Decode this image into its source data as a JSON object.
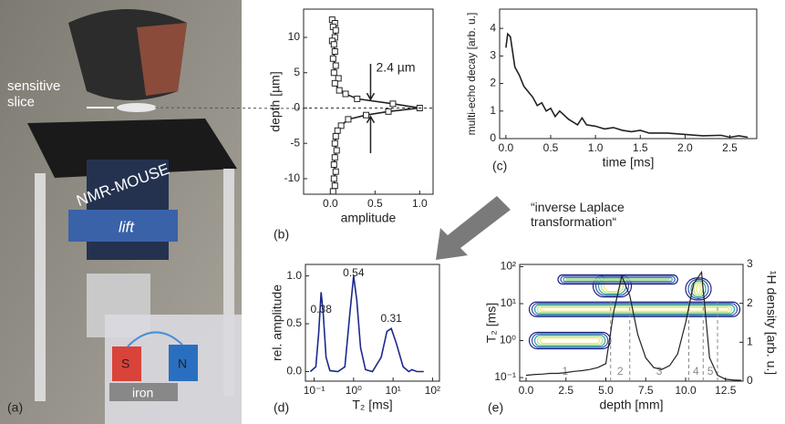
{
  "photo": {
    "panel": "(a)",
    "slice_label": "sensitive\nslice",
    "device": "NMR-MOUSE",
    "lift": "lift",
    "magnet_s": "S",
    "magnet_n": "N",
    "iron": "iron"
  },
  "arrow_label": "“inverse Laplace\ntransformation“",
  "chart_data": [
    {
      "type": "line",
      "panel": "(b)",
      "x_label": "amplitude",
      "y_label": "depth [µm]",
      "annotation": "2.4 µm",
      "xlim": [
        -0.3,
        1.15
      ],
      "xticks": [
        {
          "value": 0,
          "label": "0.0"
        },
        0.5,
        {
          "value": 1,
          "label": "1.0"
        }
      ],
      "ylim": [
        -12.2,
        14
      ],
      "yticks": [
        -10,
        -5,
        0,
        5,
        10
      ],
      "series": [
        {
          "color": "#222222",
          "markers": true,
          "x": [
            0.02,
            0.05,
            0.03,
            0.06,
            0.05,
            0.02,
            0.04,
            0.05,
            0.03,
            0.06,
            0.04,
            0.09,
            0.05,
            0.1,
            0.17,
            0.3,
            0.7,
            1.0,
            0.65,
            0.4,
            0.2,
            0.12,
            0.08,
            0.06,
            0.05,
            0.07,
            0.05,
            0.04,
            0.06,
            0.04,
            0.05,
            0.03
          ],
          "values": [
            12.5,
            12,
            11.5,
            11,
            10,
            9.5,
            9,
            8,
            7,
            6,
            5,
            4.2,
            3.5,
            2.5,
            2,
            1.3,
            0.6,
            0,
            -0.5,
            -1,
            -1.6,
            -2.5,
            -3.2,
            -4,
            -5,
            -6,
            -7,
            -8,
            -9,
            -10,
            -11,
            -11.8
          ]
        }
      ]
    },
    {
      "type": "line",
      "panel": "(c)",
      "x_label": "time [ms]",
      "y_label": "multi-echo decay [arb. u.]",
      "xlim": [
        -0.07,
        2.8
      ],
      "xticks": [
        {
          "value": 0,
          "label": "0.0"
        },
        0.5,
        {
          "value": 1,
          "label": "1.0"
        },
        1.5,
        {
          "value": 2,
          "label": "2.0"
        },
        2.5
      ],
      "ylim": [
        0,
        4.7
      ],
      "yticks": [
        0,
        1,
        2,
        3,
        4
      ],
      "series": [
        {
          "color": "#222222",
          "x": [
            0,
            0.02,
            0.05,
            0.1,
            0.15,
            0.2,
            0.25,
            0.3,
            0.35,
            0.4,
            0.45,
            0.5,
            0.55,
            0.6,
            0.7,
            0.8,
            0.85,
            0.9,
            1.0,
            1.1,
            1.2,
            1.3,
            1.4,
            1.5,
            1.6,
            1.8,
            2.0,
            2.2,
            2.4,
            2.5,
            2.6,
            2.7
          ],
          "values": [
            3.3,
            3.8,
            3.7,
            2.6,
            2.3,
            1.9,
            1.7,
            1.5,
            1.2,
            1.3,
            1.0,
            1.1,
            0.8,
            1.0,
            0.7,
            0.5,
            0.75,
            0.5,
            0.45,
            0.35,
            0.4,
            0.3,
            0.25,
            0.3,
            0.2,
            0.2,
            0.15,
            0.1,
            0.12,
            0.05,
            0.1,
            0.05
          ]
        }
      ]
    },
    {
      "type": "line",
      "panel": "(d)",
      "x_label": "T₂ [ms]",
      "y_label": "rel. amplitude",
      "x_log": true,
      "peak_labels": [
        "0.38",
        "0.54",
        "0.31"
      ],
      "xlim": [
        0.06,
        150
      ],
      "xticks": [
        {
          "value": 0.1,
          "label": "10⁻¹"
        },
        {
          "value": 1,
          "label": "10⁰"
        },
        {
          "value": 10,
          "label": "10¹"
        },
        {
          "value": 100,
          "label": "10²"
        }
      ],
      "ylim": [
        -0.1,
        1.12
      ],
      "yticks": [
        {
          "value": 0,
          "label": "0.0"
        },
        0.5,
        {
          "value": 1,
          "label": "1.0"
        }
      ],
      "series": [
        {
          "color": "#1a2a8c",
          "x": [
            0.08,
            0.11,
            0.13,
            0.15,
            0.17,
            0.2,
            0.25,
            0.4,
            0.6,
            0.8,
            1.0,
            1.2,
            1.5,
            2,
            3,
            5,
            7,
            9,
            12,
            18,
            25,
            30,
            40,
            60
          ],
          "values": [
            0,
            0.05,
            0.4,
            0.83,
            0.6,
            0.15,
            0.01,
            0,
            0.05,
            0.6,
            1.0,
            0.75,
            0.25,
            0.02,
            0,
            0.15,
            0.42,
            0.45,
            0.3,
            0.05,
            0,
            0.02,
            0,
            0
          ]
        }
      ]
    },
    {
      "type": "contour",
      "panel": "(e)",
      "x_label": "depth [mm]",
      "y_label": "T₂ [ms]",
      "y2_label": "¹H density [arb. u.]",
      "y_log": true,
      "xlim": [
        -0.4,
        13.6
      ],
      "xticks": [
        {
          "value": 0,
          "label": "0.0"
        },
        2.5,
        {
          "value": 5,
          "label": "5.0"
        },
        7.5,
        {
          "value": 10,
          "label": "10.0"
        },
        12.5
      ],
      "ylim": [
        0.08,
        115
      ],
      "yticks": [
        {
          "value": 0.1,
          "label": "10⁻¹"
        },
        {
          "value": 1,
          "label": "10⁰"
        },
        {
          "value": 10,
          "label": "10¹"
        },
        {
          "value": 100,
          "label": "10²"
        }
      ],
      "y2lim": [
        0,
        3
      ],
      "y2ticks": [
        0,
        1,
        2,
        3
      ],
      "regions": {
        "labels": [
          "1",
          "2",
          "3",
          "4",
          "5"
        ],
        "boundaries": [
          5.3,
          6.5,
          10.2,
          11.1,
          12.0
        ]
      },
      "series": [
        {
          "color": "#222222",
          "axis": "y2",
          "x": [
            0,
            0.5,
            1,
            1.5,
            2,
            2.5,
            3,
            3.5,
            4,
            4.5,
            5,
            5.5,
            6,
            6.5,
            7,
            7.5,
            8,
            8.5,
            9,
            9.5,
            10,
            10.5,
            11,
            11.5,
            12,
            12.5,
            13,
            13.5
          ],
          "values": [
            0.15,
            0.17,
            0.18,
            0.2,
            0.2,
            0.22,
            0.25,
            0.27,
            0.3,
            0.35,
            0.45,
            1.8,
            2.7,
            2.2,
            1.2,
            0.6,
            0.35,
            0.3,
            0.4,
            0.7,
            1.5,
            2.5,
            2.8,
            0.6,
            0.15,
            0.05,
            0.03,
            0.02
          ]
        }
      ]
    }
  ]
}
